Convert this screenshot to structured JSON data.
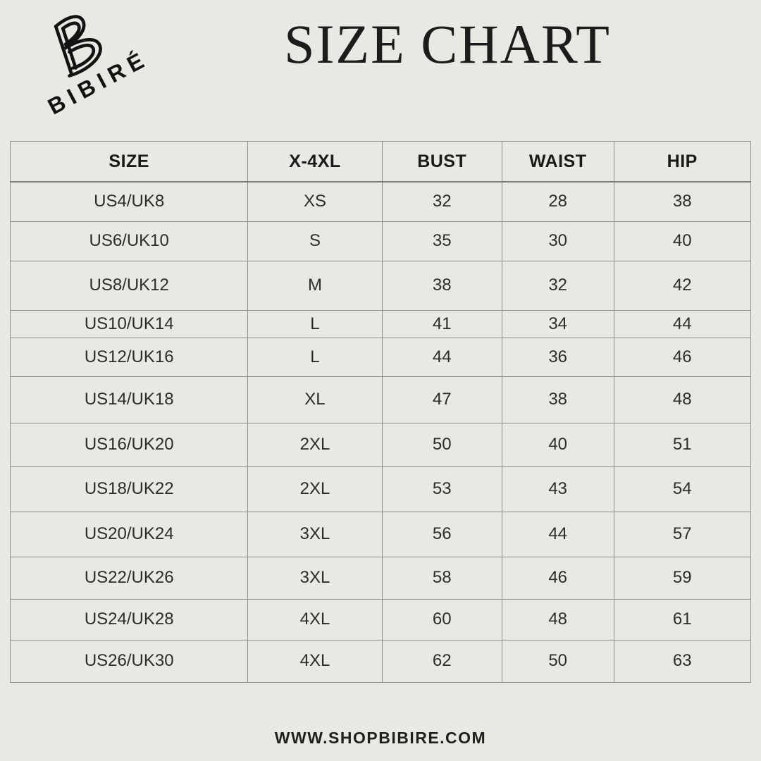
{
  "brand": {
    "name": "BIBIRÉ",
    "monogram": "bibire-double-b-monogram"
  },
  "title": "SIZE CHART",
  "footer": {
    "website": "WWW.SHOPBIBIRE.COM"
  },
  "colors": {
    "background": "#e9e8e3",
    "grid": "#8d8d8b",
    "text": "#2c2c2c",
    "heading": "#1c1c1c"
  },
  "chart_data": {
    "type": "table",
    "title": "SIZE CHART",
    "columns": [
      "SIZE",
      "X-4XL",
      "BUST",
      "WAIST",
      "HIP"
    ],
    "rows": [
      [
        "US4/UK8",
        "XS",
        "32",
        "28",
        "38"
      ],
      [
        "US6/UK10",
        "S",
        "35",
        "30",
        "40"
      ],
      [
        "US8/UK12",
        "M",
        "38",
        "32",
        "42"
      ],
      [
        "US10/UK14",
        "L",
        "41",
        "34",
        "44"
      ],
      [
        "US12/UK16",
        "L",
        "44",
        "36",
        "46"
      ],
      [
        "US14/UK18",
        "XL",
        "47",
        "38",
        "48"
      ],
      [
        "US16/UK20",
        "2XL",
        "50",
        "40",
        "51"
      ],
      [
        "US18/UK22",
        "2XL",
        "53",
        "43",
        "54"
      ],
      [
        "US20/UK24",
        "3XL",
        "56",
        "44",
        "57"
      ],
      [
        "US22/UK26",
        "3XL",
        "58",
        "46",
        "59"
      ],
      [
        "US24/UK28",
        "4XL",
        "60",
        "48",
        "61"
      ],
      [
        "US26/UK30",
        "4XL",
        "62",
        "50",
        "63"
      ]
    ]
  }
}
